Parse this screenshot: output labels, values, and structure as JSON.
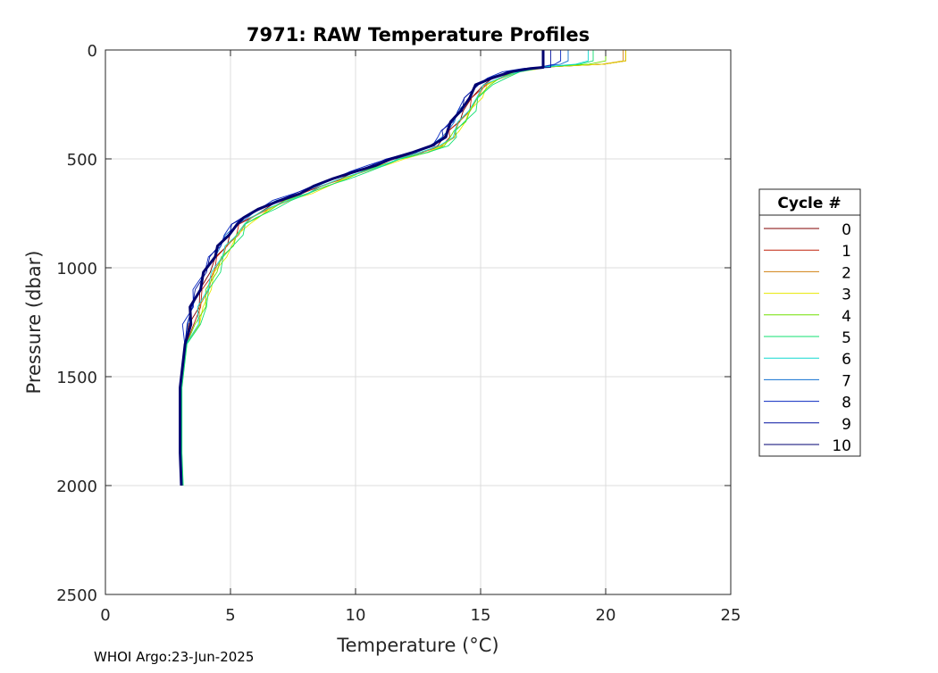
{
  "chart_data": {
    "type": "line",
    "title": "7971: RAW Temperature Profiles",
    "xlabel": "Temperature (°C)",
    "ylabel": "Pressure (dbar)",
    "xlim": [
      0,
      25
    ],
    "ylim": [
      0,
      2500
    ],
    "y_reversed": true,
    "x_ticks": [
      "0",
      "5",
      "10",
      "15",
      "20",
      "25"
    ],
    "y_ticks": [
      "0",
      "500",
      "1000",
      "1500",
      "2000",
      "2500"
    ],
    "grid": true,
    "legend_title": "Cycle #",
    "legend_position": "right",
    "footer": "WHOI Argo:23-Jun-2025",
    "base_profile": [
      [
        20.8,
        0
      ],
      [
        20.8,
        50
      ],
      [
        20.5,
        65
      ],
      [
        19.5,
        70
      ],
      [
        18.0,
        75
      ],
      [
        17.5,
        80
      ],
      [
        17.0,
        85
      ],
      [
        16.2,
        100
      ],
      [
        15.5,
        130
      ],
      [
        15.0,
        160
      ],
      [
        14.6,
        220
      ],
      [
        14.3,
        280
      ],
      [
        14.0,
        330
      ],
      [
        13.7,
        370
      ],
      [
        13.6,
        400
      ],
      [
        13.2,
        440
      ],
      [
        12.5,
        470
      ],
      [
        11.5,
        500
      ],
      [
        10.8,
        530
      ],
      [
        10.0,
        560
      ],
      [
        9.3,
        590
      ],
      [
        8.5,
        625
      ],
      [
        7.8,
        660
      ],
      [
        7.0,
        690
      ],
      [
        6.3,
        730
      ],
      [
        5.7,
        770
      ],
      [
        5.3,
        800
      ],
      [
        5.0,
        850
      ],
      [
        4.7,
        900
      ],
      [
        4.4,
        950
      ],
      [
        4.1,
        1020
      ],
      [
        3.8,
        1100
      ],
      [
        3.6,
        1180
      ],
      [
        3.4,
        1260
      ],
      [
        3.2,
        1350
      ],
      [
        3.1,
        1450
      ],
      [
        3.0,
        1550
      ],
      [
        3.0,
        1700
      ],
      [
        3.0,
        1850
      ],
      [
        3.05,
        2000
      ]
    ],
    "series": [
      {
        "name": "0",
        "color": "#800000",
        "surface_temp": 20.8,
        "offset": 0.05,
        "depth": 2000,
        "width": 0.9
      },
      {
        "name": "1",
        "color": "#c0200a",
        "surface_temp": 20.8,
        "offset": 0.15,
        "depth": 2000,
        "width": 0.9
      },
      {
        "name": "2",
        "color": "#d08010",
        "surface_temp": 20.7,
        "offset": 0.25,
        "depth": 2000,
        "width": 0.9
      },
      {
        "name": "3",
        "color": "#e8e800",
        "surface_temp": 20.8,
        "offset": 0.35,
        "depth": 2000,
        "width": 0.9
      },
      {
        "name": "4",
        "color": "#70e000",
        "surface_temp": 20.0,
        "offset": 0.3,
        "depth": 2000,
        "width": 0.9
      },
      {
        "name": "5",
        "color": "#10e070",
        "surface_temp": 19.5,
        "offset": 0.4,
        "depth": 2000,
        "width": 0.9
      },
      {
        "name": "6",
        "color": "#10d8d0",
        "surface_temp": 19.3,
        "offset": 0.2,
        "depth": 2000,
        "width": 0.9
      },
      {
        "name": "7",
        "color": "#1070d0",
        "surface_temp": 18.5,
        "offset": -0.1,
        "depth": 2000,
        "width": 0.9
      },
      {
        "name": "8",
        "color": "#0828c0",
        "surface_temp": 18.2,
        "offset": -0.2,
        "depth": 2000,
        "width": 0.9
      },
      {
        "name": "9",
        "color": "#0010a0",
        "surface_temp": 17.8,
        "offset": -0.15,
        "depth": 2000,
        "width": 0.9
      },
      {
        "name": "10",
        "color": "#000070",
        "surface_temp": 17.5,
        "offset": -0.1,
        "depth": 2000,
        "width": 3.0
      }
    ]
  }
}
